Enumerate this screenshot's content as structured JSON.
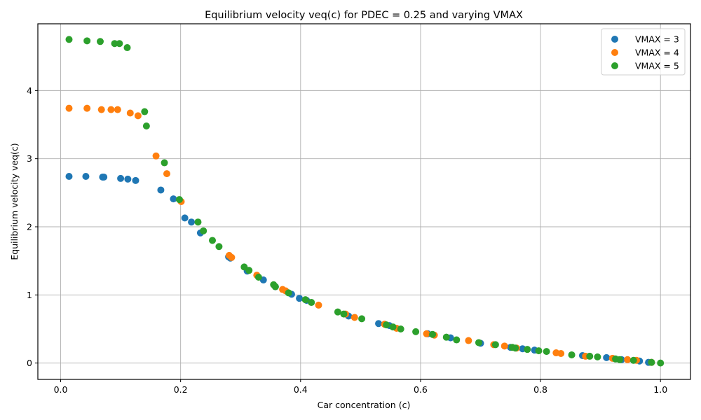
{
  "chart_data": {
    "type": "scatter",
    "title": "Equilibrium velocity veq(c) for PDEC = 0.25 and varying VMAX",
    "xlabel": "Car concentration (c)",
    "ylabel": "Equilibrium velocity veq(c)",
    "xlim": [
      -0.038,
      1.05
    ],
    "ylim": [
      -0.24,
      4.98
    ],
    "xticks": [
      0.0,
      0.2,
      0.4,
      0.6,
      0.8,
      1.0
    ],
    "xtick_labels": [
      "0.0",
      "0.2",
      "0.4",
      "0.6",
      "0.8",
      "1.0"
    ],
    "yticks": [
      0,
      1,
      2,
      3,
      4
    ],
    "ytick_labels": [
      "0",
      "1",
      "2",
      "3",
      "4"
    ],
    "grid": true,
    "legend_position": "top-right",
    "series": [
      {
        "name": "VMAX = 3",
        "color": "#1f77b4",
        "x": [
          0.014,
          0.042,
          0.07,
          0.072,
          0.1,
          0.112,
          0.125,
          0.167,
          0.188,
          0.207,
          0.218,
          0.233,
          0.28,
          0.283,
          0.311,
          0.338,
          0.358,
          0.385,
          0.398,
          0.41,
          0.48,
          0.53,
          0.548,
          0.612,
          0.65,
          0.7,
          0.75,
          0.77,
          0.79,
          0.87,
          0.91,
          0.935,
          0.965,
          0.98
        ],
        "y": [
          2.74,
          2.74,
          2.73,
          2.73,
          2.71,
          2.7,
          2.68,
          2.54,
          2.41,
          2.13,
          2.07,
          1.91,
          1.56,
          1.54,
          1.35,
          1.22,
          1.12,
          1.01,
          0.95,
          0.92,
          0.69,
          0.58,
          0.55,
          0.43,
          0.37,
          0.29,
          0.23,
          0.21,
          0.19,
          0.11,
          0.08,
          0.05,
          0.03,
          0.01
        ]
      },
      {
        "name": "VMAX = 4",
        "color": "#ff7f0e",
        "x": [
          0.014,
          0.044,
          0.068,
          0.084,
          0.095,
          0.116,
          0.129,
          0.159,
          0.177,
          0.201,
          0.281,
          0.285,
          0.327,
          0.37,
          0.375,
          0.43,
          0.475,
          0.49,
          0.54,
          0.56,
          0.61,
          0.623,
          0.68,
          0.722,
          0.74,
          0.76,
          0.826,
          0.834,
          0.875,
          0.92,
          0.945,
          0.96,
          0.985
        ],
        "y": [
          3.74,
          3.74,
          3.72,
          3.72,
          3.72,
          3.67,
          3.63,
          3.04,
          2.78,
          2.37,
          1.58,
          1.55,
          1.29,
          1.08,
          1.06,
          0.85,
          0.72,
          0.67,
          0.57,
          0.51,
          0.43,
          0.41,
          0.33,
          0.27,
          0.25,
          0.22,
          0.15,
          0.14,
          0.1,
          0.07,
          0.05,
          0.04,
          0.01
        ]
      },
      {
        "name": "VMAX = 5",
        "color": "#2ca02c",
        "x": [
          0.014,
          0.044,
          0.066,
          0.09,
          0.098,
          0.111,
          0.14,
          0.143,
          0.173,
          0.198,
          0.229,
          0.238,
          0.253,
          0.264,
          0.306,
          0.314,
          0.33,
          0.355,
          0.358,
          0.38,
          0.408,
          0.418,
          0.462,
          0.472,
          0.502,
          0.543,
          0.554,
          0.567,
          0.592,
          0.62,
          0.66,
          0.643,
          0.697,
          0.725,
          0.753,
          0.758,
          0.778,
          0.797,
          0.81,
          0.852,
          0.882,
          0.895,
          0.925,
          0.932,
          0.955,
          0.985,
          1.0
        ],
        "y": [
          4.75,
          4.73,
          4.72,
          4.69,
          4.69,
          4.63,
          3.69,
          3.48,
          2.94,
          2.4,
          2.07,
          1.94,
          1.8,
          1.71,
          1.41,
          1.36,
          1.26,
          1.15,
          1.12,
          1.03,
          0.93,
          0.89,
          0.75,
          0.72,
          0.65,
          0.56,
          0.53,
          0.5,
          0.46,
          0.42,
          0.34,
          0.38,
          0.3,
          0.27,
          0.23,
          0.22,
          0.2,
          0.18,
          0.17,
          0.12,
          0.1,
          0.09,
          0.06,
          0.05,
          0.04,
          0.01,
          0.0
        ]
      }
    ]
  }
}
